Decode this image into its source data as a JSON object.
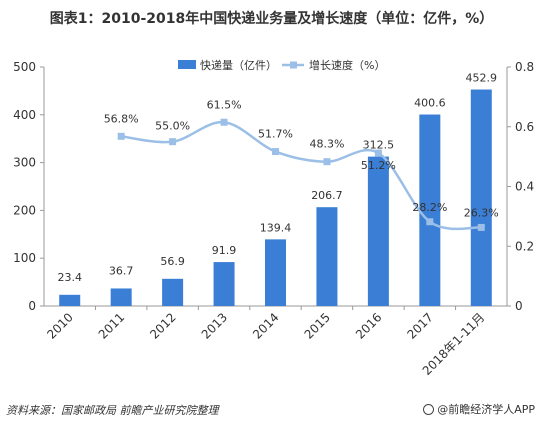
{
  "chart_data": {
    "type": "bar",
    "title": "图表1：2010-2018年中国快递业务量及增长速度（单位：亿件，%）",
    "categories": [
      "2010",
      "2011",
      "2012",
      "2013",
      "2014",
      "2015",
      "2016",
      "2017",
      "2018年1-11月"
    ],
    "series": [
      {
        "name": "快递量（亿件）",
        "type": "bar",
        "axis": "left",
        "color": "#3a7fd5",
        "values": [
          23.4,
          36.7,
          56.9,
          91.9,
          139.4,
          206.7,
          312.5,
          400.6,
          452.9
        ],
        "labels": [
          "23.4",
          "36.7",
          "56.9",
          "91.9",
          "139.4",
          "206.7",
          "312.5",
          "400.6",
          "452.9"
        ]
      },
      {
        "name": "增长速度（%）",
        "type": "line",
        "axis": "right",
        "color": "#9bbfe6",
        "values": [
          null,
          0.568,
          0.55,
          0.615,
          0.517,
          0.483,
          0.512,
          0.282,
          0.263
        ],
        "labels": [
          "",
          "56.8%",
          "55.0%",
          "61.5%",
          "51.7%",
          "48.3%",
          "51.2%",
          "28.2%",
          "26.3%"
        ]
      }
    ],
    "y_left": {
      "ylim": [
        0,
        500
      ],
      "ticks": [
        "0",
        "100",
        "200",
        "300",
        "400",
        "500"
      ]
    },
    "y_right": {
      "ylim": [
        0,
        0.8
      ],
      "ticks": [
        "0",
        "0.2",
        "0.4",
        "0.6",
        "0.8"
      ]
    },
    "legend": {
      "position": "top-right"
    },
    "grid": false
  },
  "footer": {
    "source": "资料来源：国家邮政局 前瞻产业研究院整理",
    "brand": "@前瞻经济学人APP"
  }
}
